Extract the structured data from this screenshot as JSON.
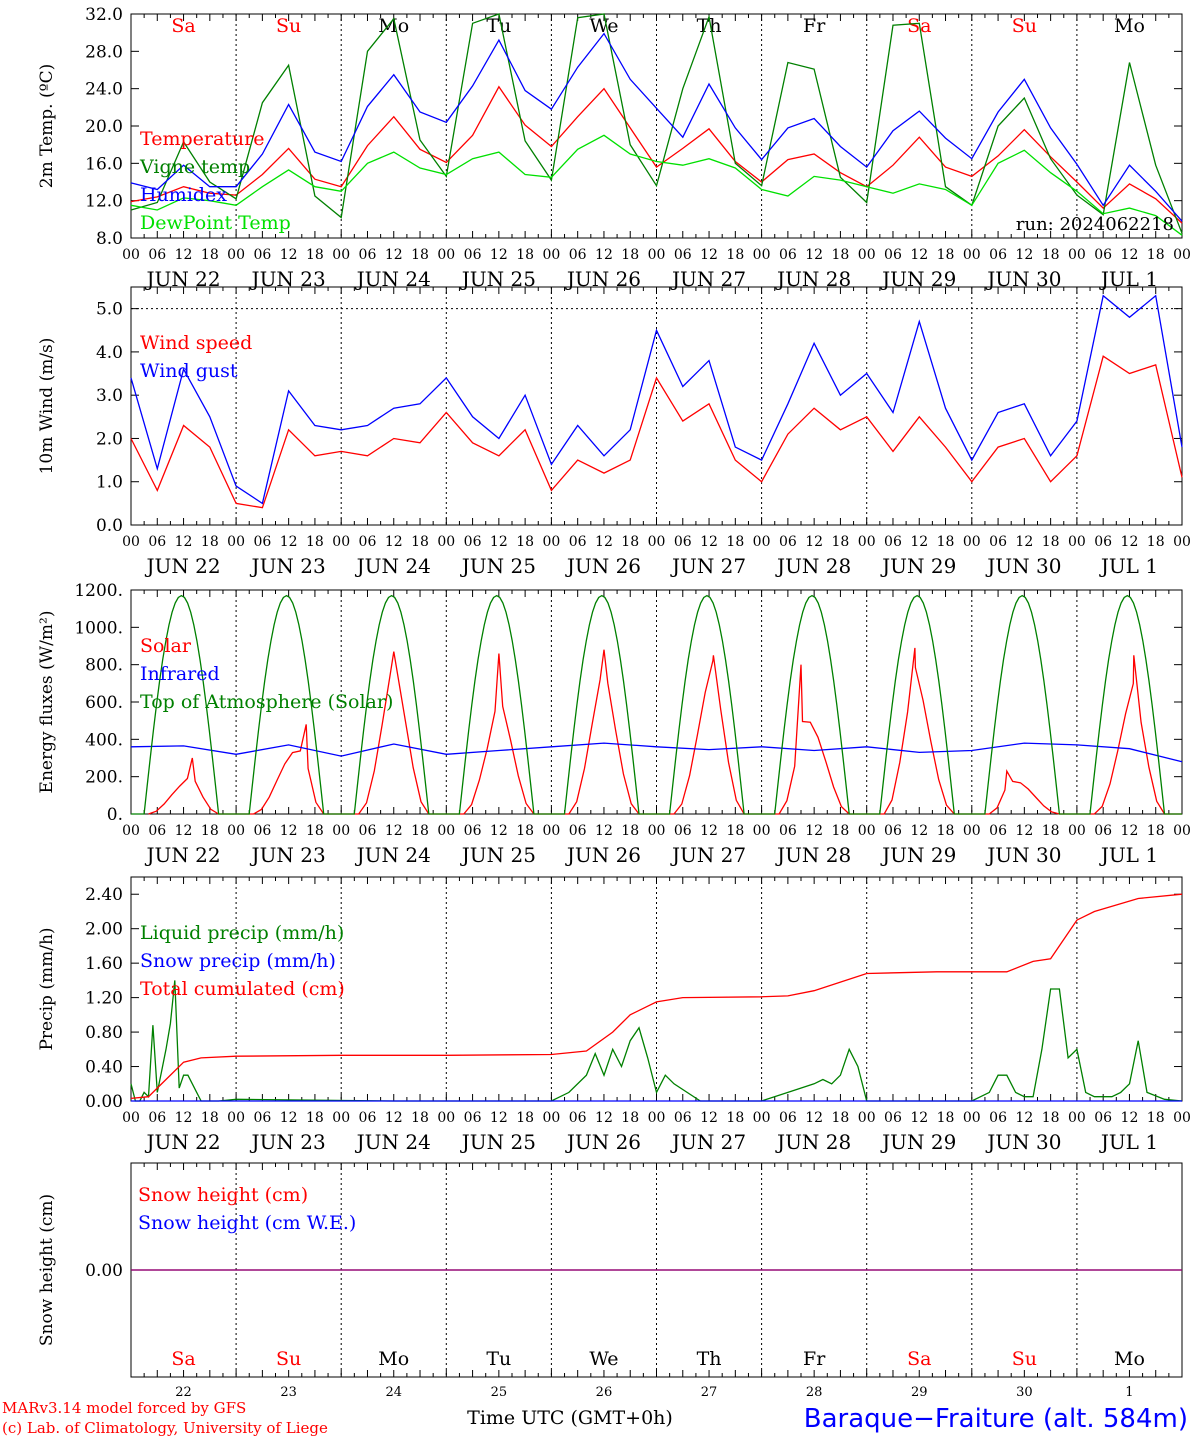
{
  "colors": {
    "red": "#ff0000",
    "green": "#008000",
    "blue": "#0000ff",
    "light_green": "#00e000",
    "purple": "#800080",
    "black": "#000000"
  },
  "x_axis": {
    "hours": [
      "00",
      "06",
      "12",
      "18"
    ],
    "end_hour": "00",
    "dates": [
      "JUN 22",
      "JUN 23",
      "JUN 24",
      "JUN 25",
      "JUN 26",
      "JUN 27",
      "JUN 28",
      "JUN 29",
      "JUN 30",
      "JUL 1"
    ],
    "day_numbers": [
      "22",
      "23",
      "24",
      "25",
      "26",
      "27",
      "28",
      "29",
      "30",
      "1"
    ],
    "weekdays": [
      "Sa",
      "Su",
      "Mo",
      "Tu",
      "We",
      "Th",
      "Fr",
      "Sa",
      "Su",
      "Mo"
    ],
    "weekend_flags": [
      true,
      true,
      false,
      false,
      false,
      false,
      false,
      true,
      true,
      false
    ],
    "title": "Time UTC (GMT+0h)",
    "days": 10,
    "month_break_after_day": 9
  },
  "footer": {
    "credit_line1": "MARv3.14 model forced by GFS",
    "credit_line2": "(c) Lab. of Climatology, University of Liege",
    "station": "Baraque−Fraiture (alt. 584m)"
  },
  "chart_data": [
    {
      "type": "line",
      "ylabel": "2m Temp. (ºC)",
      "ylim": [
        8,
        32
      ],
      "yticks": [
        "8.0",
        "12.0",
        "16.0",
        "20.0",
        "24.0",
        "28.0",
        "32.0"
      ],
      "annotation": "run: 2024062218",
      "x_unit": "hours since JUN 22 00 UTC",
      "series": [
        {
          "name": "Temperature",
          "color": "red",
          "x": [
            0,
            6,
            12,
            18,
            24,
            30,
            36,
            42,
            48,
            54,
            60,
            66,
            72,
            78,
            84,
            90,
            96,
            102,
            108,
            114,
            120,
            126,
            132,
            138,
            144,
            150,
            156,
            162,
            168,
            174,
            180,
            186,
            192,
            198,
            204,
            210,
            216,
            222,
            228,
            234,
            240
          ],
          "y": [
            11.9,
            12.4,
            13.5,
            12.8,
            12.6,
            14.8,
            17.6,
            14.3,
            13.5,
            17.9,
            21.0,
            17.5,
            16.1,
            19.0,
            24.2,
            20.1,
            17.8,
            21.0,
            24.0,
            19.8,
            15.6,
            17.6,
            19.7,
            16.2,
            14.0,
            16.4,
            17.0,
            15.0,
            13.5,
            15.8,
            18.8,
            15.6,
            14.6,
            16.8,
            19.6,
            16.7,
            14.0,
            11.2,
            13.8,
            12.2,
            9.6
          ]
        },
        {
          "name": "Vigne temp",
          "color": "green",
          "x": [
            0,
            6,
            12,
            18,
            24,
            30,
            36,
            42,
            48,
            54,
            60,
            66,
            72,
            78,
            84,
            90,
            96,
            102,
            108,
            114,
            120,
            126,
            132,
            138,
            144,
            150,
            156,
            162,
            168,
            174,
            180,
            186,
            192,
            198,
            204,
            210,
            216,
            222,
            228,
            234,
            240
          ],
          "y": [
            11.0,
            11.8,
            18.3,
            14.0,
            12.2,
            22.5,
            26.5,
            12.5,
            10.2,
            28.0,
            31.5,
            18.5,
            14.6,
            31.0,
            32.0,
            18.4,
            14.2,
            31.6,
            32.0,
            18.0,
            13.6,
            24.0,
            31.7,
            16.0,
            13.6,
            26.8,
            26.1,
            14.5,
            11.8,
            30.8,
            31.0,
            13.5,
            11.5,
            20.0,
            23.0,
            16.5,
            12.6,
            10.5,
            26.8,
            15.8,
            8.5
          ]
        },
        {
          "name": "Humidex",
          "color": "blue",
          "x": [
            0,
            6,
            12,
            18,
            24,
            30,
            36,
            42,
            48,
            54,
            60,
            66,
            72,
            78,
            84,
            90,
            96,
            102,
            108,
            114,
            120,
            126,
            132,
            138,
            144,
            150,
            156,
            162,
            168,
            174,
            180,
            186,
            192,
            198,
            204,
            210,
            216,
            222,
            228,
            234,
            240
          ],
          "y": [
            13.9,
            13.2,
            15.8,
            13.5,
            13.5,
            17.0,
            22.3,
            17.2,
            16.2,
            22.1,
            25.5,
            21.5,
            20.4,
            24.3,
            29.2,
            23.8,
            21.8,
            26.3,
            29.9,
            25.0,
            21.9,
            18.8,
            24.5,
            19.8,
            16.4,
            19.8,
            20.8,
            17.8,
            15.6,
            19.5,
            21.6,
            18.7,
            16.5,
            21.5,
            25.0,
            19.8,
            15.9,
            11.5,
            15.8,
            13.0,
            9.8
          ]
        },
        {
          "name": "DewPoint Temp",
          "color": "light_green",
          "x": [
            0,
            6,
            12,
            18,
            24,
            30,
            36,
            42,
            48,
            54,
            60,
            66,
            72,
            78,
            84,
            90,
            96,
            102,
            108,
            114,
            120,
            126,
            132,
            138,
            144,
            150,
            156,
            162,
            168,
            174,
            180,
            186,
            192,
            198,
            204,
            210,
            216,
            222,
            228,
            234,
            240
          ],
          "y": [
            11.5,
            11.0,
            12.3,
            12.0,
            11.5,
            13.5,
            15.3,
            13.5,
            13.0,
            16.0,
            17.2,
            15.5,
            14.8,
            16.5,
            17.2,
            14.8,
            14.5,
            17.5,
            19.0,
            17.0,
            16.2,
            15.8,
            16.5,
            15.5,
            13.2,
            12.5,
            14.6,
            14.2,
            13.5,
            12.8,
            13.8,
            13.2,
            11.5,
            16.0,
            17.4,
            15.0,
            13.0,
            10.6,
            11.2,
            10.4,
            8.3
          ]
        }
      ]
    },
    {
      "type": "line",
      "ylabel": "10m Wind (m/s)",
      "ylim": [
        0,
        5.5
      ],
      "yticks": [
        "0.0",
        "1.0",
        "2.0",
        "3.0",
        "4.0",
        "5.0"
      ],
      "reference_line": 5.0,
      "x_unit": "hours since JUN 22 00 UTC",
      "series": [
        {
          "name": "Wind speed",
          "color": "red",
          "x": [
            0,
            6,
            12,
            18,
            24,
            30,
            36,
            42,
            48,
            54,
            60,
            66,
            72,
            78,
            84,
            90,
            96,
            102,
            108,
            114,
            120,
            126,
            132,
            138,
            144,
            150,
            156,
            162,
            168,
            174,
            180,
            186,
            192,
            198,
            204,
            210,
            216,
            222,
            228,
            234,
            240
          ],
          "y": [
            2.0,
            0.8,
            2.3,
            1.8,
            0.5,
            0.4,
            2.2,
            1.6,
            1.7,
            1.6,
            2.0,
            1.9,
            2.6,
            1.9,
            1.6,
            2.2,
            0.8,
            1.5,
            1.2,
            1.5,
            3.4,
            2.4,
            2.8,
            1.5,
            1.0,
            2.1,
            2.7,
            2.2,
            2.5,
            1.7,
            2.5,
            1.8,
            1.0,
            1.8,
            2.0,
            1.0,
            1.6,
            3.9,
            3.5,
            3.7,
            1.1
          ]
        },
        {
          "name": "Wind gust",
          "color": "blue",
          "x": [
            0,
            6,
            12,
            18,
            24,
            30,
            36,
            42,
            48,
            54,
            60,
            66,
            72,
            78,
            84,
            90,
            96,
            102,
            108,
            114,
            120,
            126,
            132,
            138,
            144,
            150,
            156,
            162,
            168,
            174,
            180,
            186,
            192,
            198,
            204,
            210,
            216,
            222,
            228,
            234,
            240
          ],
          "y": [
            3.4,
            1.3,
            3.6,
            2.5,
            0.9,
            0.5,
            3.1,
            2.3,
            2.2,
            2.3,
            2.7,
            2.8,
            3.4,
            2.5,
            2.0,
            3.0,
            1.4,
            2.3,
            1.6,
            2.2,
            4.5,
            3.2,
            3.8,
            1.8,
            1.5,
            2.8,
            4.2,
            3.0,
            3.5,
            2.6,
            4.7,
            2.7,
            1.5,
            2.6,
            2.8,
            1.6,
            2.4,
            5.3,
            4.8,
            5.3,
            1.8
          ]
        }
      ]
    },
    {
      "type": "line",
      "ylabel": "Energy fluxes (W/m²)",
      "ylim": [
        0,
        1200
      ],
      "yticks": [
        "0.",
        "200.",
        "400.",
        "600.",
        "800.",
        "1000.",
        "1200."
      ],
      "x_unit": "hours since JUN 22 00 UTC",
      "series": [
        {
          "name": "Solar",
          "color": "red",
          "peaks": [
            300,
            480,
            870,
            860,
            880,
            850,
            800,
            890,
            230,
            850
          ],
          "peak_hours": [
            14,
            16,
            12,
            12,
            12,
            13,
            9,
            11,
            8,
            13
          ]
        },
        {
          "name": "Infrared",
          "color": "blue",
          "x": [
            0,
            12,
            24,
            36,
            48,
            60,
            72,
            84,
            96,
            108,
            120,
            132,
            144,
            156,
            168,
            180,
            192,
            204,
            216,
            228,
            240
          ],
          "y": [
            360,
            365,
            320,
            370,
            310,
            375,
            320,
            340,
            360,
            380,
            360,
            345,
            360,
            340,
            360,
            330,
            340,
            380,
            370,
            350,
            280
          ]
        },
        {
          "name": "Top of Atmosphere (Solar)",
          "color": "green",
          "peak": 1170,
          "sunrise_hour": 3,
          "sunset_hour": 20
        }
      ]
    },
    {
      "type": "line",
      "ylabel": "Precip (mm/h)",
      "ylim": [
        0,
        2.6
      ],
      "yticks": [
        "0.00",
        "0.40",
        "0.80",
        "1.20",
        "1.60",
        "2.00",
        "2.40"
      ],
      "x_unit": "hours since JUN 22 00 UTC",
      "series": [
        {
          "name": "Liquid precip (mm/h)",
          "color": "green",
          "x": [
            0,
            1,
            2,
            3,
            4,
            5,
            6,
            7,
            8,
            9,
            10,
            11,
            12,
            13,
            14,
            15,
            16,
            18,
            20,
            24,
            60,
            96,
            100,
            104,
            106,
            108,
            110,
            112,
            114,
            116,
            118,
            120,
            122,
            124,
            130,
            144,
            150,
            156,
            158,
            160,
            162,
            164,
            166,
            168,
            180,
            192,
            196,
            198,
            200,
            202,
            204,
            206,
            208,
            210,
            212,
            214,
            216,
            218,
            220,
            222,
            224,
            226,
            228,
            230,
            232,
            236,
            240
          ],
          "y": [
            0.2,
            0,
            0,
            0.1,
            0.05,
            0.88,
            0.1,
            0.35,
            0.6,
            0.9,
            1.4,
            0.15,
            0.3,
            0.3,
            0.2,
            0.1,
            0,
            0,
            0,
            0.02,
            0,
            0,
            0.1,
            0.3,
            0.55,
            0.3,
            0.6,
            0.4,
            0.7,
            0.85,
            0.5,
            0.1,
            0.3,
            0.2,
            0,
            0,
            0.1,
            0.2,
            0.25,
            0.2,
            0.3,
            0.6,
            0.4,
            0,
            0,
            0,
            0.1,
            0.3,
            0.3,
            0.1,
            0.05,
            0.05,
            0.6,
            1.3,
            1.3,
            0.5,
            0.6,
            0.1,
            0.05,
            0.05,
            0.05,
            0.1,
            0.2,
            0.7,
            0.1,
            0.02,
            0
          ]
        },
        {
          "name": "Snow precip (mm/h)",
          "color": "blue",
          "x": [
            0,
            240
          ],
          "y": [
            0,
            0
          ]
        },
        {
          "name": "Total cumulated (cm)",
          "color": "red",
          "x": [
            0,
            4,
            8,
            12,
            16,
            24,
            48,
            72,
            96,
            104,
            110,
            114,
            118,
            120,
            126,
            144,
            150,
            156,
            162,
            168,
            184,
            192,
            200,
            206,
            210,
            216,
            220,
            230,
            240
          ],
          "y": [
            0.03,
            0.05,
            0.25,
            0.45,
            0.5,
            0.52,
            0.53,
            0.53,
            0.54,
            0.58,
            0.8,
            1.0,
            1.1,
            1.15,
            1.2,
            1.21,
            1.22,
            1.28,
            1.38,
            1.48,
            1.5,
            1.5,
            1.5,
            1.62,
            1.65,
            2.1,
            2.2,
            2.35,
            2.4
          ]
        }
      ]
    },
    {
      "type": "line",
      "ylabel": "Snow height (cm)",
      "ylim": [
        -1,
        1
      ],
      "yticks": [
        "0.00"
      ],
      "x_unit": "hours since JUN 22 00 UTC",
      "series": [
        {
          "name": "Snow height (cm)",
          "color": "red",
          "x": [
            0,
            240
          ],
          "y": [
            0,
            0
          ]
        },
        {
          "name": "Snow height (cm W.E.)",
          "color": "blue",
          "x": [
            0,
            240
          ],
          "y": [
            0,
            0
          ]
        }
      ]
    }
  ]
}
